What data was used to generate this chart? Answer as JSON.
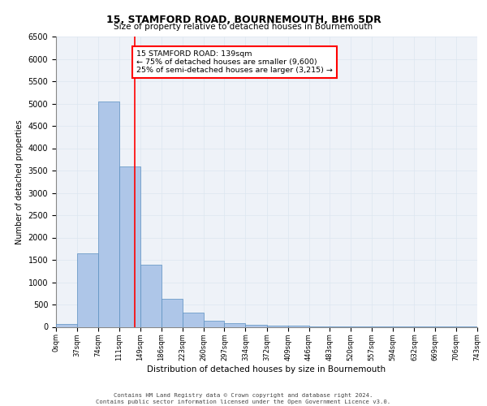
{
  "title1": "15, STAMFORD ROAD, BOURNEMOUTH, BH6 5DR",
  "title2": "Size of property relative to detached houses in Bournemouth",
  "xlabel": "Distribution of detached houses by size in Bournemouth",
  "ylabel": "Number of detached properties",
  "bin_edges": [
    0,
    37,
    74,
    111,
    149,
    186,
    223,
    260,
    297,
    334,
    372,
    409,
    446,
    483,
    520,
    557,
    594,
    632,
    669,
    706,
    743
  ],
  "bin_labels": [
    "0sqm",
    "37sqm",
    "74sqm",
    "111sqm",
    "149sqm",
    "186sqm",
    "223sqm",
    "260sqm",
    "297sqm",
    "334sqm",
    "372sqm",
    "409sqm",
    "446sqm",
    "483sqm",
    "520sqm",
    "557sqm",
    "594sqm",
    "632sqm",
    "669sqm",
    "706sqm",
    "743sqm"
  ],
  "counts": [
    70,
    1650,
    5050,
    3600,
    1400,
    620,
    310,
    140,
    80,
    50,
    30,
    20,
    10,
    5,
    5,
    5,
    5,
    5,
    5,
    5
  ],
  "bar_color": "#aec6e8",
  "bar_edge_color": "#5a8fc0",
  "vline_x": 139,
  "vline_color": "red",
  "annotation_text": "15 STAMFORD ROAD: 139sqm\n← 75% of detached houses are smaller (9,600)\n25% of semi-detached houses are larger (3,215) →",
  "annotation_box_color": "white",
  "annotation_box_edge": "red",
  "ylim": [
    0,
    6500
  ],
  "yticks": [
    0,
    500,
    1000,
    1500,
    2000,
    2500,
    3000,
    3500,
    4000,
    4500,
    5000,
    5500,
    6000,
    6500
  ],
  "grid_color": "#dce6f0",
  "bg_color": "#eef2f8",
  "footer1": "Contains HM Land Registry data © Crown copyright and database right 2024.",
  "footer2": "Contains public sector information licensed under the Open Government Licence v3.0."
}
